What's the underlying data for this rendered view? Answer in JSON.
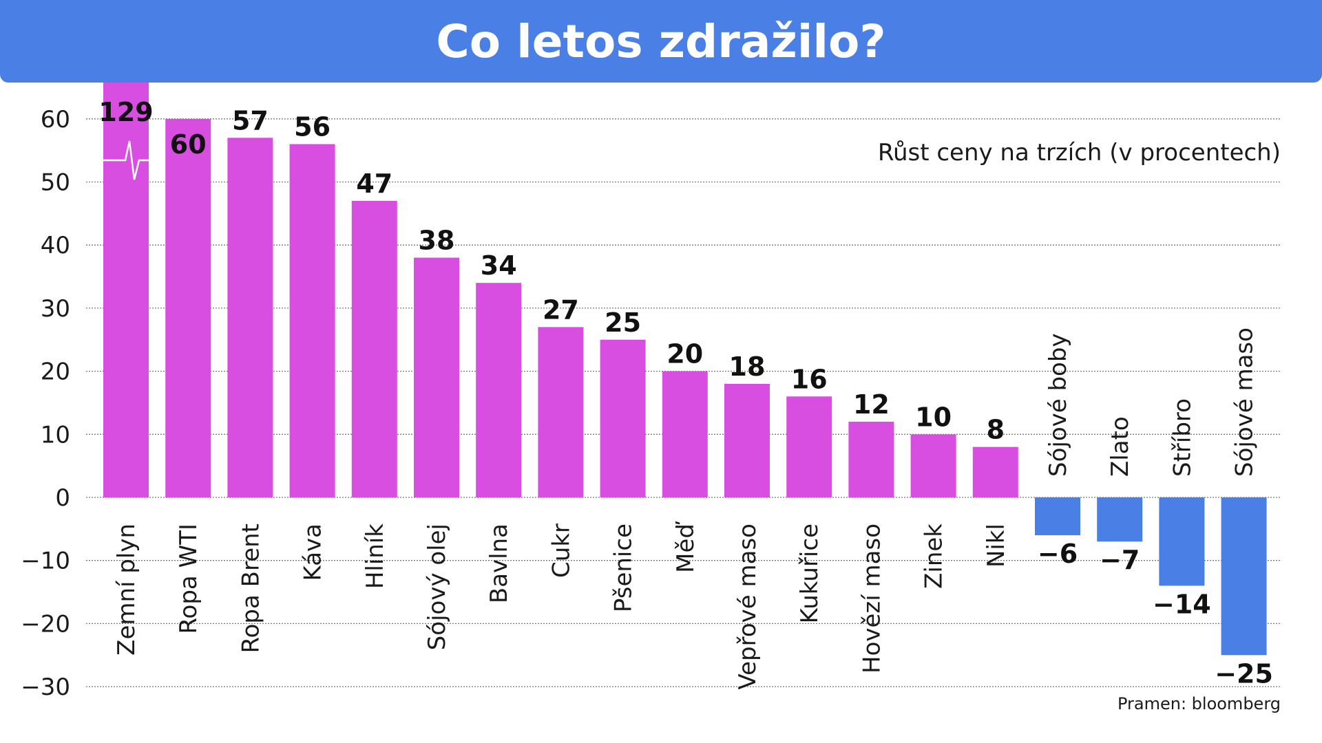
{
  "title": "Co letos zdražilo?",
  "colors": {
    "banner": "#4a7fe5",
    "positive": "#d84ee0",
    "negative": "#4a7fe5",
    "grid": "#777777"
  },
  "chart_data": {
    "type": "bar",
    "subtitle": "Růst ceny na trzích (v procentech)",
    "source": "Pramen: bloomberg",
    "ylim": [
      -30,
      60
    ],
    "yticks": [
      60,
      50,
      40,
      30,
      20,
      10,
      0,
      -10,
      -20,
      -30
    ],
    "ytick_labels": [
      "60",
      "50",
      "40",
      "30",
      "20",
      "10",
      "0",
      "−10",
      "−20",
      "−30"
    ],
    "grid": true,
    "axis_break_on": "Zemní plyn",
    "categories": [
      "Zemní plyn",
      "Ropa WTI",
      "Ropa Brent",
      "Káva",
      "Hliník",
      "Sójový olej",
      "Bavlna",
      "Cukr",
      "Pšenice",
      "Měď",
      "Vepřové maso",
      "Kukuřice",
      "Hovězí maso",
      "Zinek",
      "Nikl",
      "Sójové boby",
      "Zlato",
      "Stříbro",
      "Sójové maso"
    ],
    "values": [
      129,
      60,
      57,
      56,
      47,
      38,
      34,
      27,
      25,
      20,
      18,
      16,
      12,
      10,
      8,
      -6,
      -7,
      -14,
      -25
    ],
    "value_labels": [
      "129",
      "60",
      "57",
      "56",
      "47",
      "38",
      "34",
      "27",
      "25",
      "20",
      "18",
      "16",
      "12",
      "10",
      "8",
      "−6",
      "−7",
      "−14",
      "−25"
    ]
  }
}
